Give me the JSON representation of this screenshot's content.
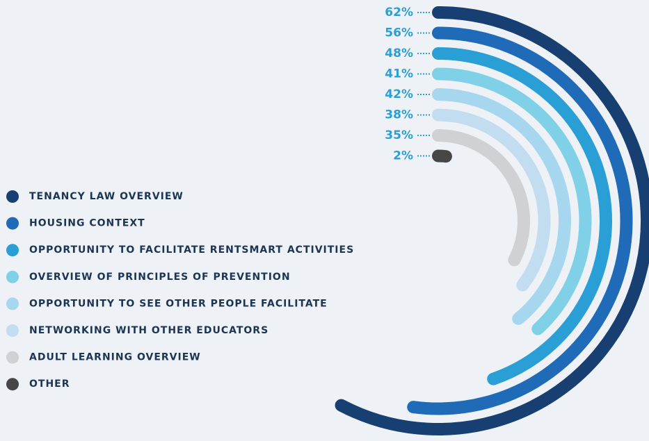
{
  "chart_data": {
    "type": "radial_bar",
    "categories": [
      "TENANCY LAW OVERVIEW",
      "HOUSING CONTEXT",
      "OPPORTUNITY TO FACILITATE RENTSMART ACTIVITIES",
      "OVERVIEW OF PRINCIPLES OF PREVENTION",
      "OPPORTUNITY TO SEE OTHER PEOPLE FACILITATE",
      "NETWORKING WITH OTHER EDUCATORS",
      "ADULT LEARNING OVERVIEW",
      "OTHER"
    ],
    "values": [
      62,
      56,
      48,
      41,
      42,
      38,
      35,
      2
    ],
    "value_labels": [
      "62%",
      "56%",
      "48%",
      "41%",
      "42%",
      "38%",
      "35%",
      "2%"
    ],
    "colors": [
      "#173f72",
      "#1f6bb8",
      "#2a9fd6",
      "#80d0e8",
      "#a6d7ee",
      "#c1ddef",
      "#cfd1d4",
      "#474747"
    ],
    "ylim": [
      0,
      100
    ]
  }
}
